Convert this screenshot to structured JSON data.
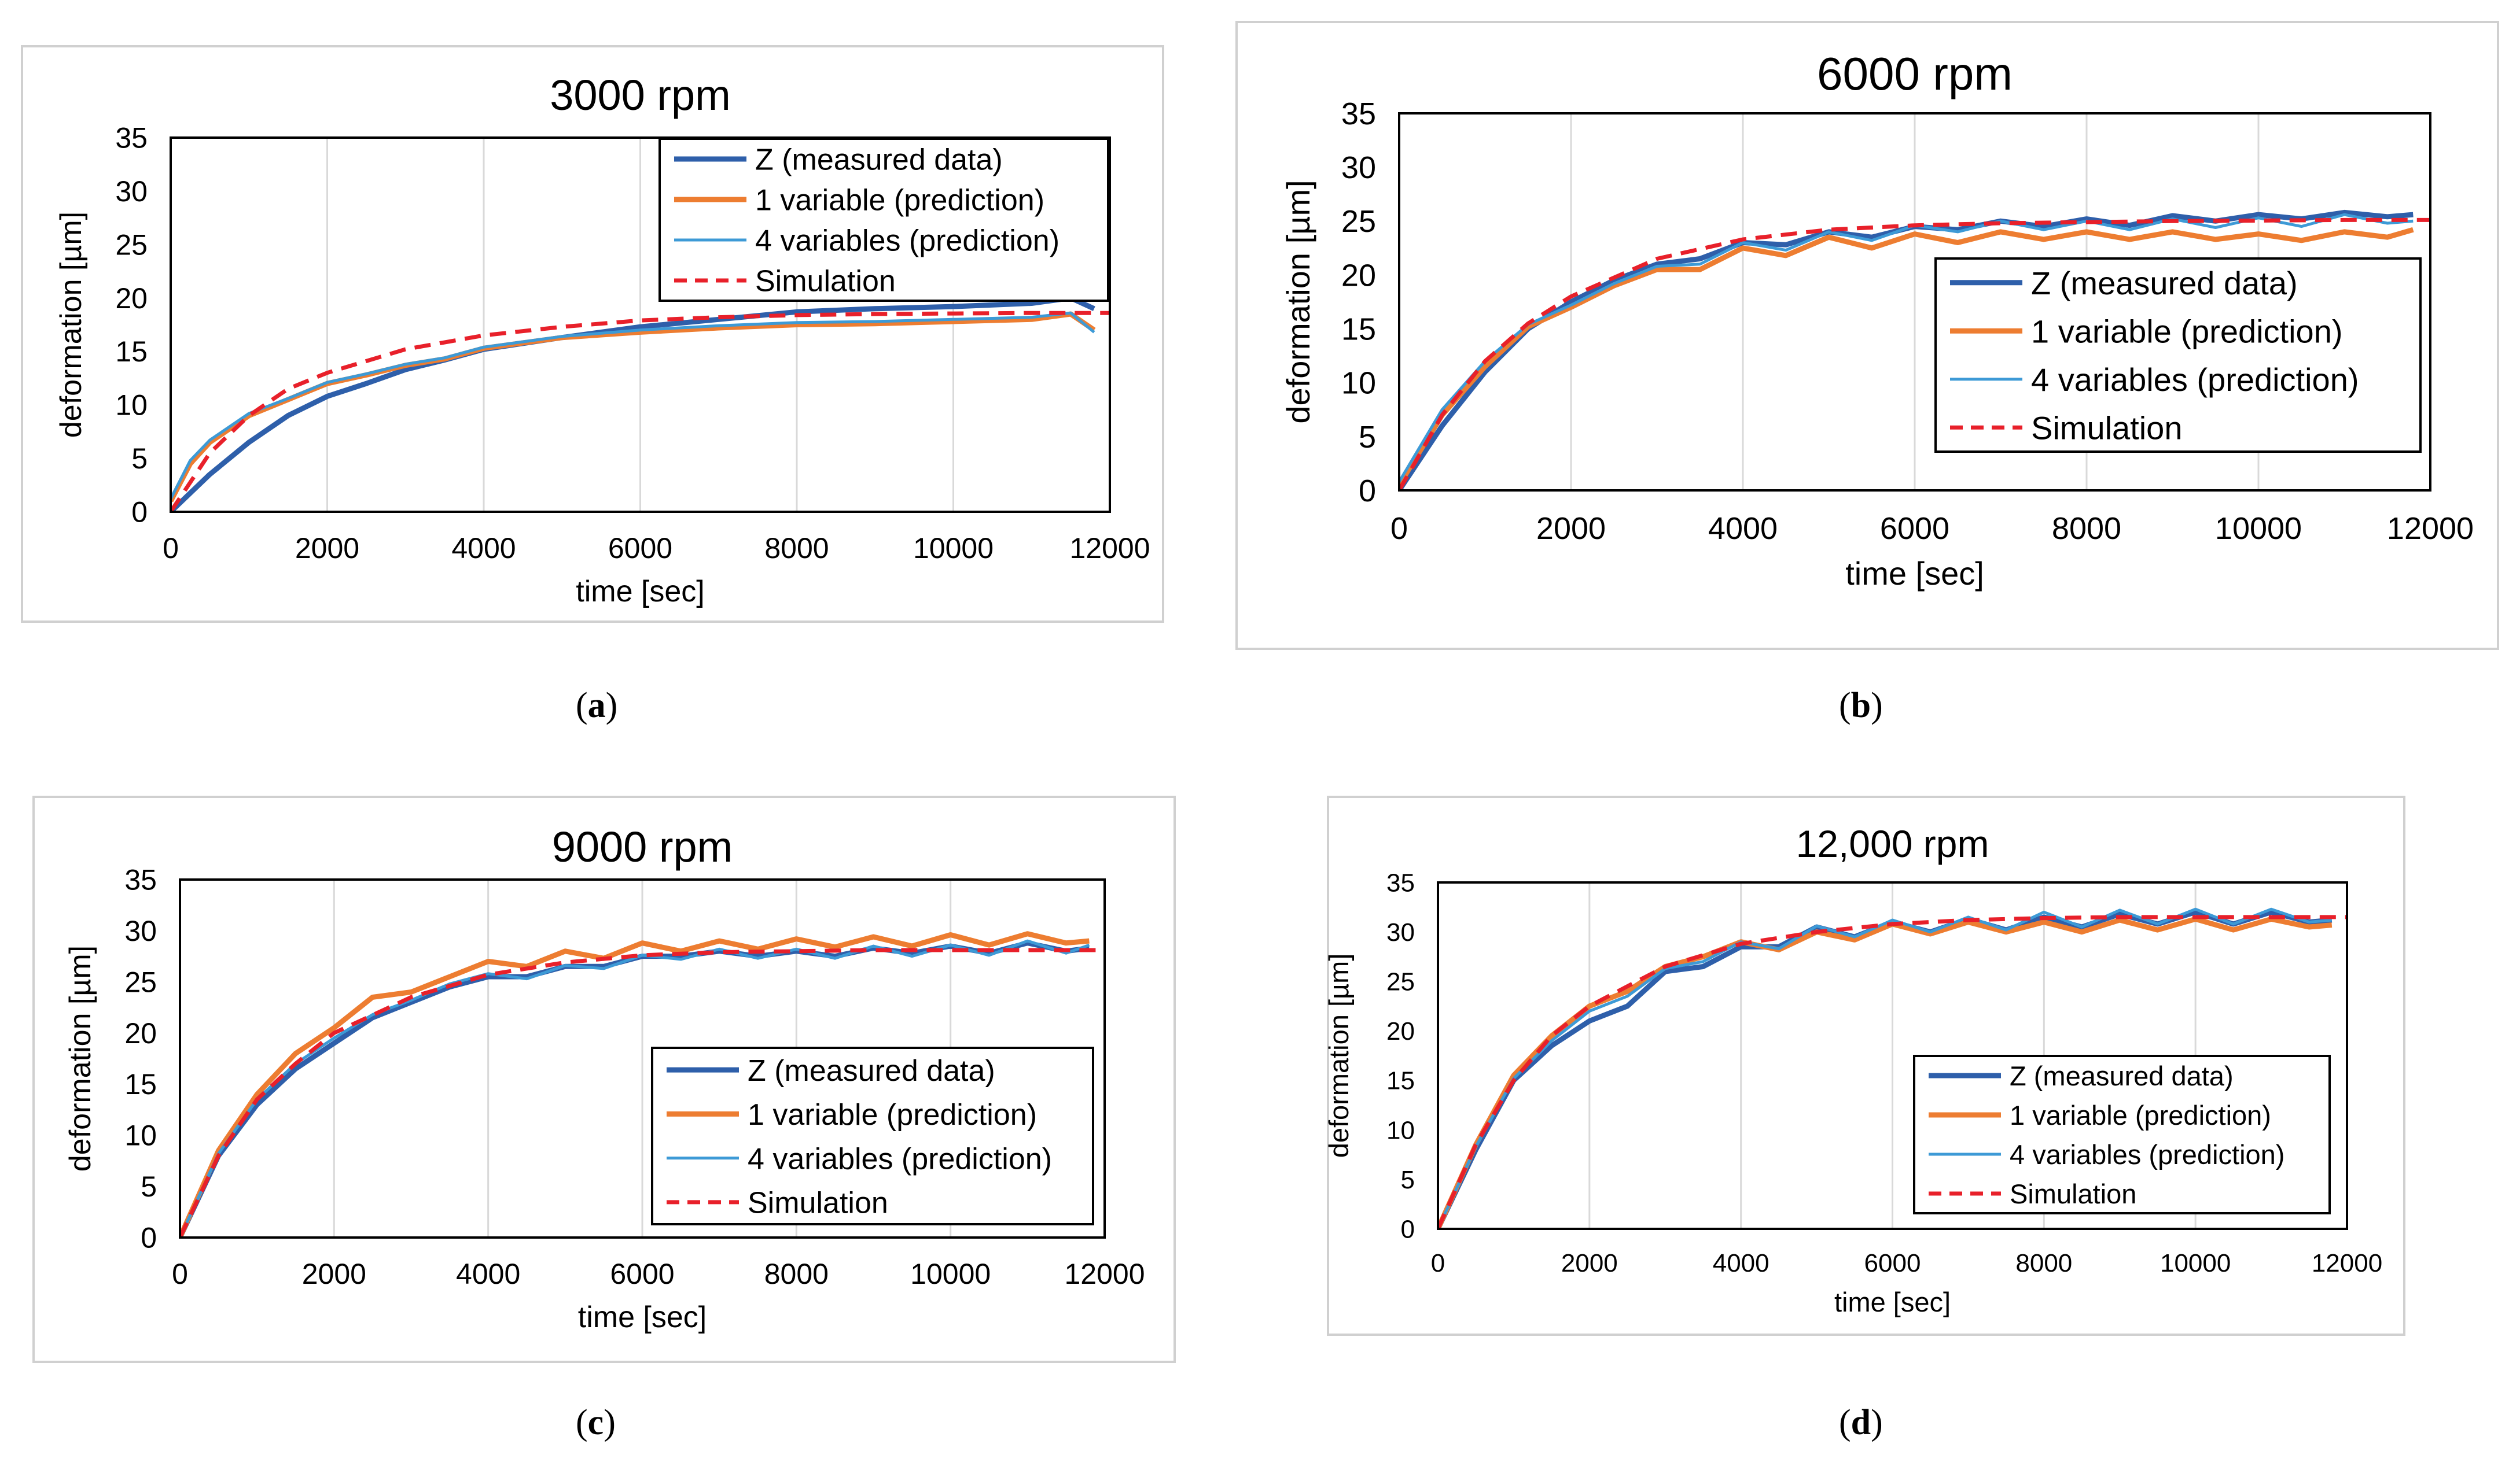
{
  "colors": {
    "measured": "#2e5faa",
    "one_var": "#ed7d31",
    "four_var": "#3d9ad6",
    "simulation": "#e8202a",
    "frame": "#d0d0d0",
    "grid": "#d9d9d9"
  },
  "captions": [
    {
      "open": "(",
      "letter": "a",
      "close": ")"
    },
    {
      "open": "(",
      "letter": "b",
      "close": ")"
    },
    {
      "open": "(",
      "letter": "c",
      "close": ")"
    },
    {
      "open": "(",
      "letter": "d",
      "close": ")"
    }
  ],
  "chart_data": [
    {
      "type": "line",
      "title": "3000 rpm",
      "xlabel": "time [sec]",
      "ylabel": "deformation [µm]",
      "xlim": [
        0,
        12000
      ],
      "ylim": [
        0,
        35
      ],
      "xticks": [
        0,
        2000,
        4000,
        6000,
        8000,
        10000,
        12000
      ],
      "yticks": [
        0,
        5,
        10,
        15,
        20,
        25,
        30,
        35
      ],
      "legend_position": "top-right",
      "series": [
        {
          "name": "Z (measured data)",
          "x": [
            0,
            500,
            1000,
            1500,
            2000,
            2500,
            3000,
            3500,
            4000,
            5000,
            6000,
            7000,
            8000,
            9000,
            10000,
            11000,
            11500,
            11800
          ],
          "y": [
            0,
            3.5,
            6.5,
            9,
            10.8,
            12,
            13.3,
            14.2,
            15.2,
            16.3,
            17.3,
            18,
            18.7,
            19,
            19.2,
            19.5,
            20,
            19
          ]
        },
        {
          "name": "1 variable (prediction)",
          "x": [
            0,
            250,
            500,
            1000,
            1500,
            2000,
            2500,
            3000,
            3500,
            4000,
            5000,
            6000,
            7000,
            8000,
            9000,
            10000,
            11000,
            11500,
            11800
          ],
          "y": [
            1,
            4.5,
            6.5,
            9,
            10.5,
            12,
            12.8,
            13.7,
            14.3,
            15.3,
            16.3,
            16.8,
            17.2,
            17.5,
            17.6,
            17.8,
            18,
            18.5,
            17
          ]
        },
        {
          "name": "4 variables (prediction)",
          "x": [
            0,
            250,
            500,
            1000,
            1500,
            2000,
            2500,
            3000,
            3500,
            4000,
            5000,
            6000,
            7000,
            8000,
            9000,
            10000,
            11000,
            11500,
            11800
          ],
          "y": [
            1.2,
            4.8,
            6.7,
            9.2,
            10.6,
            12.1,
            12.9,
            13.8,
            14.4,
            15.4,
            16.4,
            17,
            17.4,
            17.7,
            17.8,
            18,
            18.2,
            18.6,
            16.8
          ]
        },
        {
          "name": "Simulation",
          "x": [
            0,
            500,
            1000,
            1500,
            2000,
            3000,
            4000,
            5000,
            6000,
            7000,
            8000,
            9000,
            10000,
            11000,
            12000
          ],
          "y": [
            0,
            5.5,
            9,
            11.5,
            13,
            15.2,
            16.5,
            17.3,
            17.9,
            18.2,
            18.4,
            18.5,
            18.55,
            18.6,
            18.6
          ]
        }
      ]
    },
    {
      "type": "line",
      "title": "6000 rpm",
      "xlabel": "time [sec]",
      "ylabel": "deformation [µm]",
      "xlim": [
        0,
        12000
      ],
      "ylim": [
        0,
        35
      ],
      "xticks": [
        0,
        2000,
        4000,
        6000,
        8000,
        10000,
        12000
      ],
      "yticks": [
        0,
        5,
        10,
        15,
        20,
        25,
        30,
        35
      ],
      "legend_position": "center-right",
      "series": [
        {
          "name": "Z (measured data)",
          "x": [
            0,
            500,
            1000,
            1500,
            2000,
            2500,
            3000,
            3500,
            4000,
            4500,
            5000,
            5500,
            6000,
            6500,
            7000,
            7500,
            8000,
            8500,
            9000,
            9500,
            10000,
            10500,
            11000,
            11500,
            11800
          ],
          "y": [
            0,
            6,
            11,
            15,
            17.5,
            19.5,
            21,
            21.5,
            23,
            22.8,
            24,
            23.5,
            24.5,
            24.2,
            25,
            24.5,
            25.2,
            24.6,
            25.5,
            25,
            25.6,
            25.2,
            25.8,
            25.4,
            25.6
          ]
        },
        {
          "name": "1 variable (prediction)",
          "x": [
            0,
            500,
            1000,
            1500,
            2000,
            2500,
            3000,
            3500,
            4000,
            4500,
            5000,
            5500,
            6000,
            6500,
            7000,
            7500,
            8000,
            8500,
            9000,
            9500,
            10000,
            10500,
            11000,
            11500,
            11800
          ],
          "y": [
            0.5,
            7,
            11.5,
            15.2,
            17,
            19,
            20.5,
            20.5,
            22.5,
            21.8,
            23.5,
            22.5,
            23.8,
            23,
            24,
            23.3,
            24,
            23.3,
            24,
            23.3,
            23.8,
            23.2,
            24,
            23.5,
            24.2
          ]
        },
        {
          "name": "4 variables (prediction)",
          "x": [
            0,
            500,
            1000,
            1500,
            2000,
            2500,
            3000,
            3500,
            4000,
            4500,
            5000,
            5500,
            6000,
            6500,
            7000,
            7500,
            8000,
            8500,
            9000,
            9500,
            10000,
            10500,
            11000,
            11500,
            11800
          ],
          "y": [
            0.8,
            7.5,
            12,
            15.4,
            17.2,
            19.2,
            20.8,
            21,
            23,
            22.3,
            24,
            23.2,
            24.6,
            24,
            25,
            24.2,
            25,
            24.2,
            25.2,
            24.4,
            25.3,
            24.5,
            25.6,
            24.8,
            25
          ]
        },
        {
          "name": "Simulation",
          "x": [
            0,
            500,
            1000,
            1500,
            2000,
            3000,
            4000,
            5000,
            6000,
            7000,
            8000,
            9000,
            10000,
            11000,
            12000
          ],
          "y": [
            0,
            7,
            12,
            15.5,
            18,
            21.5,
            23.3,
            24.2,
            24.6,
            24.8,
            24.9,
            25,
            25.05,
            25.1,
            25.1
          ]
        }
      ]
    },
    {
      "type": "line",
      "title": "9000 rpm",
      "xlabel": "time [sec]",
      "ylabel": "deformation [µm]",
      "xlim": [
        0,
        12000
      ],
      "ylim": [
        0,
        35
      ],
      "xticks": [
        0,
        2000,
        4000,
        6000,
        8000,
        10000,
        12000
      ],
      "yticks": [
        0,
        5,
        10,
        15,
        20,
        25,
        30,
        35
      ],
      "legend_position": "bottom-right",
      "series": [
        {
          "name": "Z (measured data)",
          "x": [
            0,
            500,
            1000,
            1500,
            2000,
            2500,
            3000,
            3500,
            4000,
            4500,
            5000,
            5500,
            6000,
            6500,
            7000,
            7500,
            8000,
            8500,
            9000,
            9500,
            10000,
            10500,
            11000,
            11500,
            11800
          ],
          "y": [
            0,
            8,
            13,
            16.5,
            19,
            21.5,
            23,
            24.5,
            25.5,
            25.5,
            26.5,
            26.5,
            27.5,
            27.5,
            28,
            27.5,
            28,
            27.5,
            28.3,
            27.8,
            28.5,
            27.8,
            28.8,
            28,
            28.3
          ]
        },
        {
          "name": "1 variable (prediction)",
          "x": [
            0,
            500,
            1000,
            1500,
            2000,
            2500,
            3000,
            3500,
            4000,
            4500,
            5000,
            5500,
            6000,
            6500,
            7000,
            7500,
            8000,
            8500,
            9000,
            9500,
            10000,
            10500,
            11000,
            11500,
            11800
          ],
          "y": [
            0,
            8.5,
            14,
            18,
            20.5,
            23.5,
            24,
            25.5,
            27,
            26.5,
            28,
            27.3,
            28.8,
            28,
            29,
            28.2,
            29.2,
            28.4,
            29.4,
            28.5,
            29.6,
            28.6,
            29.7,
            28.8,
            29
          ]
        },
        {
          "name": "4 variables (prediction)",
          "x": [
            0,
            500,
            1000,
            1500,
            2000,
            2500,
            3000,
            3500,
            4000,
            4500,
            5000,
            5500,
            6000,
            6500,
            7000,
            7500,
            8000,
            8500,
            9000,
            9500,
            10000,
            10500,
            11000,
            11500,
            11800
          ],
          "y": [
            0,
            8.2,
            13.5,
            17,
            19.5,
            21.8,
            23.2,
            24.8,
            25.8,
            25.3,
            26.6,
            26.3,
            27.6,
            27.2,
            28.2,
            27.3,
            28.2,
            27.3,
            28.5,
            27.5,
            28.6,
            27.6,
            29,
            27.8,
            28.6
          ]
        },
        {
          "name": "Simulation",
          "x": [
            0,
            500,
            1000,
            1500,
            2000,
            3000,
            4000,
            5000,
            6000,
            7000,
            8000,
            9000,
            10000,
            11000,
            12000
          ],
          "y": [
            0,
            8,
            13.5,
            17,
            20,
            23.5,
            25.7,
            26.9,
            27.6,
            27.9,
            28,
            28.1,
            28.1,
            28.1,
            28.1
          ]
        }
      ]
    },
    {
      "type": "line",
      "title": "12,000 rpm",
      "xlabel": "time [sec]",
      "ylabel": "deformation [µm]",
      "xlim": [
        0,
        12000
      ],
      "ylim": [
        0,
        35
      ],
      "xticks": [
        0,
        2000,
        4000,
        6000,
        8000,
        10000,
        12000
      ],
      "yticks": [
        0,
        5,
        10,
        15,
        20,
        25,
        30,
        35
      ],
      "legend_position": "bottom-right",
      "series": [
        {
          "name": "Z (measured data)",
          "x": [
            0,
            500,
            1000,
            1500,
            2000,
            2500,
            3000,
            3500,
            4000,
            4500,
            5000,
            5500,
            6000,
            6500,
            7000,
            7500,
            8000,
            8500,
            9000,
            9500,
            10000,
            10500,
            11000,
            11500,
            11800
          ],
          "y": [
            0,
            8,
            15,
            18.5,
            21,
            22.5,
            26,
            26.5,
            28.5,
            28.5,
            30.5,
            29.5,
            31,
            30,
            31.3,
            30.2,
            31.5,
            30.5,
            31.8,
            30.8,
            32,
            30.8,
            32,
            31,
            31.2
          ]
        },
        {
          "name": "1 variable (prediction)",
          "x": [
            0,
            500,
            1000,
            1500,
            2000,
            2500,
            3000,
            3500,
            4000,
            4500,
            5000,
            5500,
            6000,
            6500,
            7000,
            7500,
            8000,
            8500,
            9000,
            9500,
            10000,
            10500,
            11000,
            11500,
            11800
          ],
          "y": [
            0,
            8.5,
            15.5,
            19.5,
            22.5,
            24,
            26.5,
            27.5,
            29,
            28.2,
            30,
            29.2,
            30.8,
            29.8,
            31,
            30,
            31,
            30,
            31.2,
            30.2,
            31.3,
            30.2,
            31.3,
            30.5,
            30.7
          ]
        },
        {
          "name": "4 variables (prediction)",
          "x": [
            0,
            500,
            1000,
            1500,
            2000,
            2500,
            3000,
            3500,
            4000,
            4500,
            5000,
            5500,
            6000,
            6500,
            7000,
            7500,
            8000,
            8500,
            9000,
            9500,
            10000,
            10500,
            11000,
            11500,
            11800
          ],
          "y": [
            0,
            8.3,
            15.2,
            19,
            22,
            23.5,
            26.3,
            27,
            29,
            28.3,
            30.6,
            29.5,
            31.2,
            30,
            31.5,
            30.2,
            32,
            30.5,
            32.2,
            30.8,
            32.3,
            30.8,
            32.3,
            31,
            31.2
          ]
        },
        {
          "name": "Simulation",
          "x": [
            0,
            500,
            1000,
            1500,
            2000,
            3000,
            4000,
            5000,
            6000,
            7000,
            8000,
            9000,
            10000,
            11000,
            12000
          ],
          "y": [
            0,
            8.5,
            15,
            19.5,
            22.5,
            26.5,
            28.8,
            30,
            30.8,
            31.2,
            31.4,
            31.5,
            31.5,
            31.5,
            31.5
          ]
        }
      ]
    }
  ]
}
